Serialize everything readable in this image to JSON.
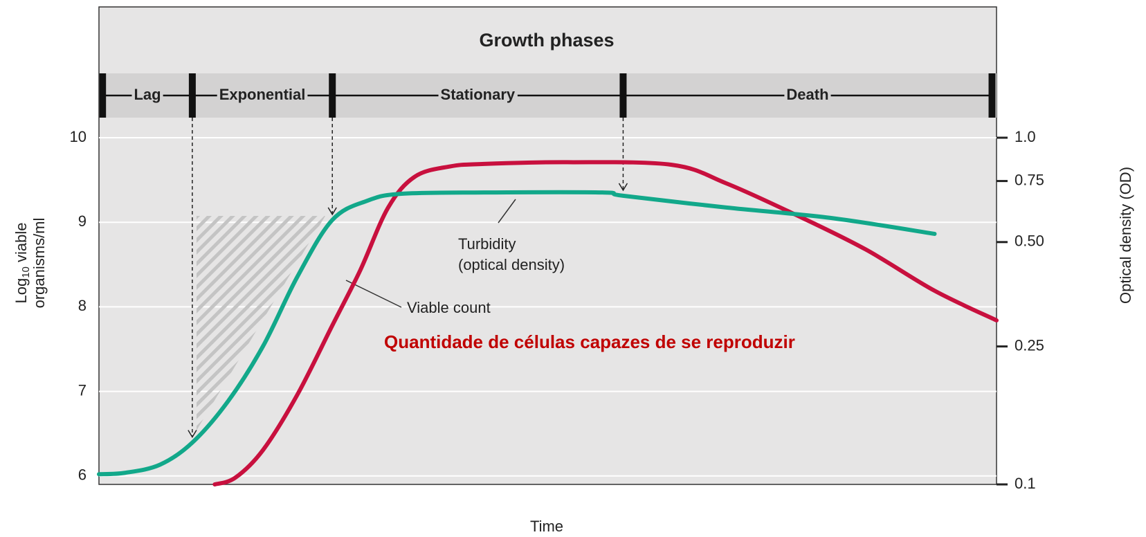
{
  "chart_data": {
    "type": "line",
    "title": "Growth phases",
    "phases": [
      "Lag",
      "Exponential",
      "Stationary",
      "Death"
    ],
    "phase_bounds": [
      0.4,
      10.4,
      26.0,
      58.4,
      99.5
    ],
    "xlabel": "Time",
    "ylabel_parts": [
      "Log",
      "10",
      " viable"
    ],
    "ylabel_line2": "organisms/ml",
    "y2label": "Optical density (OD)",
    "xlim": [
      0,
      100
    ],
    "ylim": [
      5.9,
      10.0
    ],
    "yticks": [
      6,
      7,
      8,
      9,
      10
    ],
    "y2lim": [
      0.1,
      1.0
    ],
    "y2log": true,
    "y2ticks": [
      {
        "value": 1,
        "label": "1.0"
      },
      0.75,
      {
        "value": 0.5,
        "label": "0.50"
      },
      0.25,
      0.1
    ],
    "grid": true,
    "series": [
      {
        "name": "Viable count",
        "color": "#c8103e",
        "x": [
          12.9,
          15.2,
          18.3,
          22.1,
          26.0,
          29.1,
          32.2,
          35.2,
          39.1,
          42.9,
          52.2,
          63.8,
          69.9,
          77.6,
          85.4,
          93.1,
          100
        ],
        "values": [
          5.9,
          5.98,
          6.31,
          6.96,
          7.78,
          8.43,
          9.17,
          9.54,
          9.66,
          9.69,
          9.71,
          9.68,
          9.46,
          9.09,
          8.68,
          8.19,
          7.84
        ]
      },
      {
        "name": "Turbidity",
        "color": "#12a88a",
        "axis": "y2",
        "x": [
          0,
          2.9,
          6.8,
          10.4,
          14.4,
          18.3,
          22.1,
          26.0,
          29.9,
          33.7,
          42.9,
          56.1,
          58.4,
          69.9,
          81.5,
          93.1
        ],
        "values": [
          0.107,
          0.108,
          0.114,
          0.132,
          0.174,
          0.251,
          0.397,
          0.579,
          0.658,
          0.689,
          0.695,
          0.695,
          0.68,
          0.629,
          0.587,
          0.528
        ]
      }
    ],
    "annotations": [
      "Turbidity",
      "(optical density)",
      "Viable count",
      "Quantidade de células capazes de se reproduzir"
    ]
  }
}
